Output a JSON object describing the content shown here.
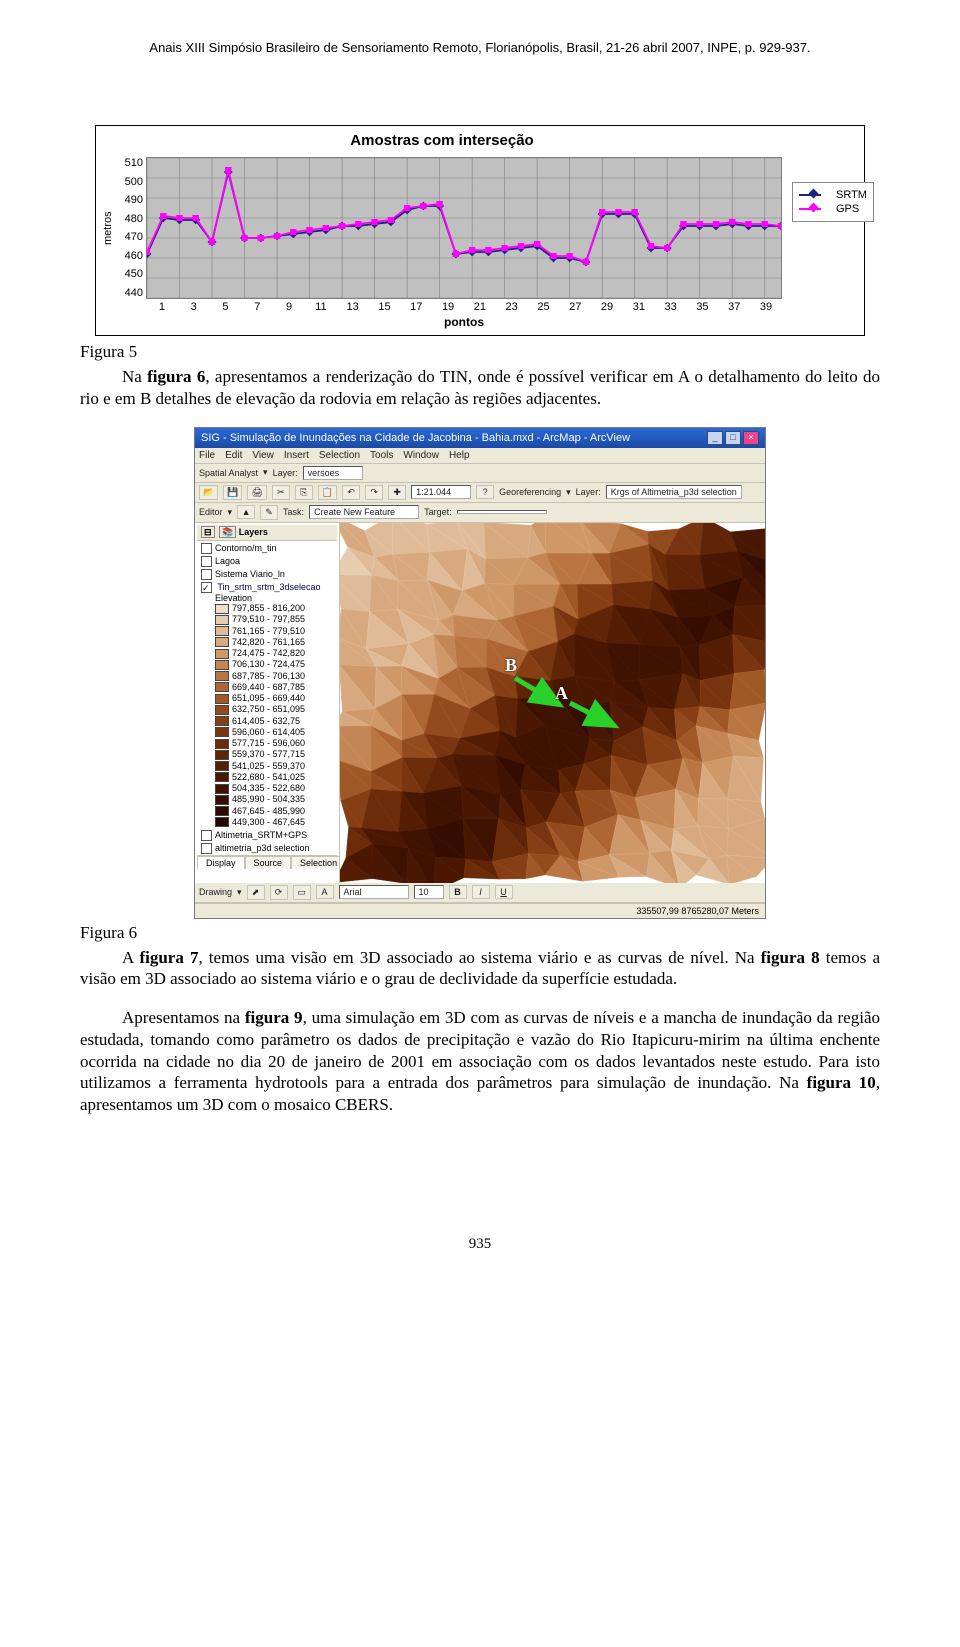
{
  "header_citation": "Anais XIII Simpósio Brasileiro de Sensoriamento Remoto, Florianópolis, Brasil, 21-26 abril 2007, INPE, p. 929-937.",
  "chart": {
    "type": "line",
    "title": "Amostras com interseção",
    "ylabel": "metros",
    "xlabel": "pontos",
    "ylim": [
      440,
      510
    ],
    "ytick_step": 10,
    "yticks": [
      "510",
      "500",
      "490",
      "480",
      "470",
      "460",
      "450",
      "440"
    ],
    "xticks": [
      "1",
      "3",
      "5",
      "7",
      "9",
      "11",
      "13",
      "15",
      "17",
      "19",
      "21",
      "23",
      "25",
      "27",
      "29",
      "31",
      "33",
      "35",
      "37",
      "39"
    ],
    "background_color": "#c0c0c0",
    "grid_color": "#808080",
    "series": [
      {
        "name": "SRTM",
        "color": "#1a237e",
        "marker": "diamond",
        "values": [
          462,
          480,
          479,
          479,
          468,
          503,
          470,
          470,
          471,
          472,
          473,
          474,
          476,
          476,
          477,
          478,
          484,
          486,
          486,
          462,
          463,
          463,
          464,
          465,
          466,
          460,
          460,
          458,
          482,
          482,
          482,
          465,
          465,
          476,
          476,
          476,
          477,
          476,
          476,
          476
        ]
      },
      {
        "name": "GPS",
        "color": "#ff00ff",
        "marker": "square",
        "values": [
          463,
          481,
          480,
          480,
          468,
          504,
          470,
          470,
          471,
          473,
          474,
          475,
          476,
          477,
          478,
          479,
          485,
          486,
          487,
          462,
          464,
          464,
          465,
          466,
          467,
          461,
          461,
          458,
          483,
          483,
          483,
          466,
          465,
          477,
          477,
          477,
          478,
          477,
          477,
          476
        ]
      }
    ],
    "legend_labels": [
      "SRTM",
      "GPS"
    ]
  },
  "para1_label": "Figura 5",
  "para1": "Na figura 6, apresentamos a renderização do TIN, onde é possível verificar em A o detalhamento do leito do rio e em B detalhes de elevação da rodovia em relação às regiões adjacentes.",
  "para1_prefix": "Na ",
  "para1_bold": "figura 6",
  "screenshot": {
    "title": "SIG - Simulação de Inundações na Cidade de Jacobina - Bahia.mxd - ArcMap - ArcView",
    "menus": [
      "File",
      "Edit",
      "View",
      "Insert",
      "Selection",
      "Tools",
      "Window",
      "Help"
    ],
    "tb1_label1": "Spatial Analyst",
    "tb1_layer_label": "Layer:",
    "tb1_layer_value": "versoes",
    "tb2_scale": "1:21.044",
    "tb2_geo": "Georeferencing",
    "tb2_layer2_label": "Layer:",
    "tb2_layer2_value": "Krgs of Altimetria_p3d selection",
    "tb3_editor": "Editor",
    "tb3_task": "Task:",
    "tb3_task_value": "Create New Feature",
    "tb3_target": "Target:",
    "toc_title": "Layers",
    "toc_layers": [
      {
        "name": "Contorno/m_tin",
        "checked": false
      },
      {
        "name": "Lagoa",
        "checked": false
      },
      {
        "name": "Sistema Viario_ln",
        "checked": false
      }
    ],
    "tin_layer": "Tin_srtm_srtm_3dselecao",
    "tin_sub": "Elevation",
    "tin_classes": [
      {
        "label": "797,855 - 816,200",
        "color": "#ecdec8"
      },
      {
        "label": "779,510 - 797,855",
        "color": "#e7cdb0"
      },
      {
        "label": "761,165 - 779,510",
        "color": "#e0bb97"
      },
      {
        "label": "742,820 - 761,165",
        "color": "#d8a97f"
      },
      {
        "label": "724,475 - 742,820",
        "color": "#cf9869"
      },
      {
        "label": "706,130 - 724,475",
        "color": "#c48654"
      },
      {
        "label": "687,785 - 706,130",
        "color": "#b97642"
      },
      {
        "label": "669,440 - 687,785",
        "color": "#ad6633"
      },
      {
        "label": "651,095 - 669,440",
        "color": "#a05827"
      },
      {
        "label": "632,750 - 651,095",
        "color": "#934b1d"
      },
      {
        "label": "614,405 - 632,75",
        "color": "#863f15"
      },
      {
        "label": "596,060 - 614,405",
        "color": "#79350f"
      },
      {
        "label": "577,715 - 596,060",
        "color": "#6c2c0a"
      },
      {
        "label": "559,370 - 577,715",
        "color": "#602406"
      },
      {
        "label": "541,025 - 559,370",
        "color": "#541d04"
      },
      {
        "label": "522,680 - 541,025",
        "color": "#491702"
      },
      {
        "label": "504,335 - 522,680",
        "color": "#3f1201"
      },
      {
        "label": "485,990 - 504,335",
        "color": "#350e01"
      },
      {
        "label": "467,645 - 485,990",
        "color": "#2c0a00"
      },
      {
        "label": "449,300 - 467,645",
        "color": "#230700"
      }
    ],
    "bottom_layers": [
      "Altimetria_SRTM+GPS",
      "altimetria_p3d selection"
    ],
    "tabs": [
      "Display",
      "Source",
      "Selection"
    ],
    "bottom_toolbar": "Drawing",
    "font_value": "Arial",
    "font_size": "10",
    "status": "335507,99  8765280,07 Meters",
    "markers": {
      "A": "A",
      "B": "B"
    }
  },
  "fig6_label": "Figura 6",
  "para3_html": "A <b>figura 7</b>, temos uma visão em 3D associado ao sistema viário e as curvas de nível. Na <b>figura 8</b> temos a visão em 3D associado ao sistema viário e o grau de declividade da superfície estudada.",
  "para4_html": "Apresentamos na <b>figura 9</b>, uma simulação em 3D com as curvas de níveis e a mancha de inundação da região estudada, tomando como parâmetro os dados de precipitação e vazão do Rio Itapicuru-mirim na última enchente ocorrida na cidade no dia 20 de janeiro de 2001 em associação com os dados levantados neste estudo. Para isto utilizamos a ferramenta hydrotools para a entrada dos parâmetros para simulação de inundação. Na <b>figura 10</b>, apresentamos um 3D com o mosaico CBERS.",
  "page_number": "935"
}
